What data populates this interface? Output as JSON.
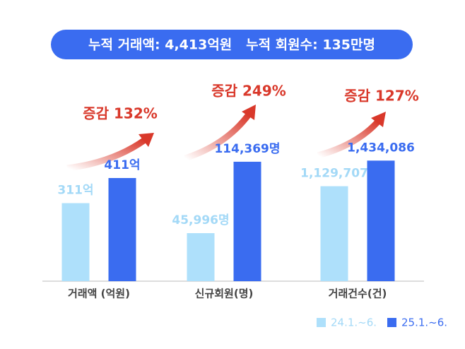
{
  "header": {
    "title": "누적 거래액: 4,413억원   누적 회원수: 135만명"
  },
  "chart_data": [
    {
      "type": "bar",
      "x_label": "거래액 (억원)",
      "annotation": "증감 132%",
      "ylim": [
        0,
        670
      ],
      "series": [
        {
          "name": "24.1.~6.",
          "color": "#aee0fb",
          "label_color": "#a3d9f7",
          "values": [
            311
          ],
          "value_labels": [
            "311억"
          ]
        },
        {
          "name": "25.1.~6.",
          "color": "#3a6cf0",
          "label_color": "#3a6cf0",
          "values": [
            411
          ],
          "value_labels": [
            "411억"
          ]
        }
      ]
    },
    {
      "type": "bar",
      "x_label": "신규회원(명)",
      "annotation": "증감 249%",
      "ylim": [
        0,
        161000
      ],
      "series": [
        {
          "name": "24.1.~6.",
          "color": "#aee0fb",
          "label_color": "#a3d9f7",
          "values": [
            45996
          ],
          "value_labels": [
            "45,996명"
          ]
        },
        {
          "name": "25.1.~6.",
          "color": "#3a6cf0",
          "label_color": "#3a6cf0",
          "values": [
            114369
          ],
          "value_labels": [
            "114,369명"
          ]
        }
      ]
    },
    {
      "type": "bar",
      "x_label": "거래건수(건)",
      "annotation": "증감 127%",
      "ylim": [
        0,
        2000000
      ],
      "series": [
        {
          "name": "24.1.~6.",
          "color": "#aee0fb",
          "label_color": "#a3d9f7",
          "values": [
            1129707
          ],
          "value_labels": [
            "1,129,707"
          ]
        },
        {
          "name": "25.1.~6.",
          "color": "#3a6cf0",
          "label_color": "#3a6cf0",
          "values": [
            1434086
          ],
          "value_labels": [
            "1,434,086"
          ]
        }
      ]
    }
  ]
}
